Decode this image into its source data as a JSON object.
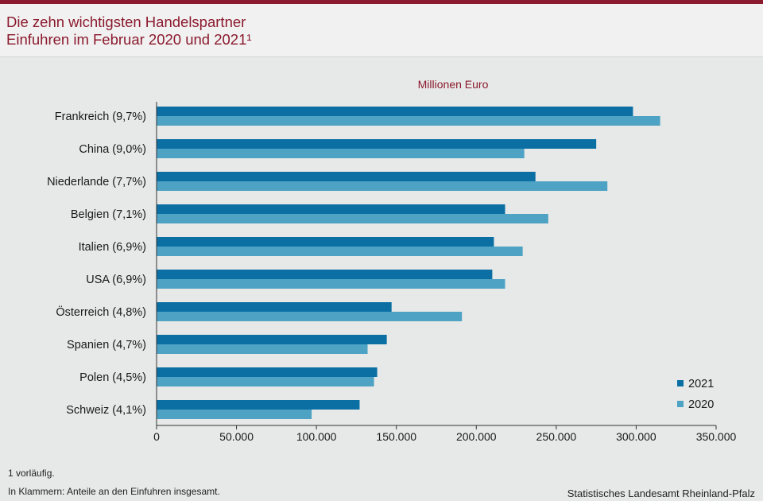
{
  "header": {
    "title_line1": "Die zehn wichtigsten Handelspartner",
    "title_line2": "Einfuhren im Februar 2020 und 2021¹"
  },
  "chart_data": {
    "type": "bar",
    "orientation": "horizontal",
    "unit_label": "Millionen  Euro",
    "categories": [
      "Frankreich (9,7%)",
      "China (9,0%)",
      "Niederlande (7,7%)",
      "Belgien (7,1%)",
      "Italien (6,9%)",
      "USA (6,9%)",
      "Österreich (4,8%)",
      "Spanien (4,7%)",
      "Polen (4,5%)",
      "Schweiz (4,1%)"
    ],
    "series": [
      {
        "name": "2021",
        "color": "#0b6fa4",
        "values": [
          298000,
          275000,
          237000,
          218000,
          211000,
          210000,
          147000,
          144000,
          138000,
          127000
        ]
      },
      {
        "name": "2020",
        "color": "#4ea2c4",
        "values": [
          315000,
          230000,
          282000,
          245000,
          229000,
          218000,
          191000,
          132000,
          136000,
          97000
        ]
      }
    ],
    "xlim": [
      0,
      350000
    ],
    "xticks": [
      "0",
      "50.000",
      "100.000",
      "150.000",
      "200.000",
      "250.000",
      "300.000",
      "350.000"
    ],
    "xtick_values": [
      0,
      50000,
      100000,
      150000,
      200000,
      250000,
      300000,
      350000
    ],
    "grid": false,
    "legend_position": "bottom-right"
  },
  "footer": {
    "note1": "1 vorläufig.",
    "note2": "In Klammern: Anteile an den Einfuhren  insgesamt.",
    "source": "Statistisches  Landesamt Rheinland-Pfalz"
  }
}
